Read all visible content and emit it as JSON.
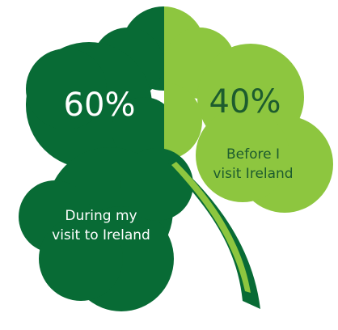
{
  "chart_data": {
    "type": "pie",
    "slices": [
      {
        "label": "During my visit to Ireland",
        "label_lines": [
          "During my",
          "visit to Ireland"
        ],
        "value": 60,
        "value_label": "60%",
        "color": "#086b35",
        "text_color": "#ffffff"
      },
      {
        "label": "Before I visit Ireland",
        "label_lines": [
          "Before I",
          "visit Ireland"
        ],
        "value": 40,
        "value_label": "40%",
        "color": "#8dc63f",
        "text_color": "#1d5c2e"
      }
    ]
  }
}
